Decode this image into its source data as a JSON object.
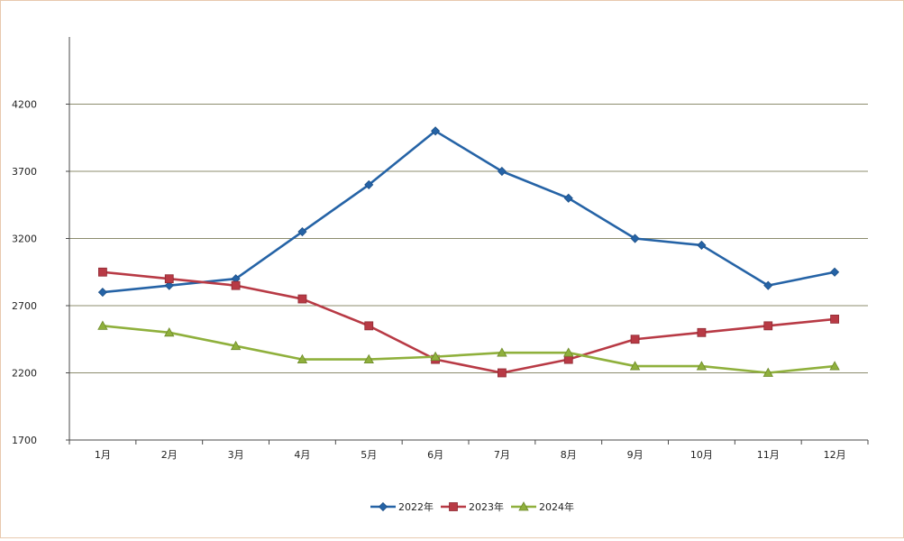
{
  "chart_data": {
    "type": "line",
    "title": "",
    "xlabel": "",
    "ylabel": "",
    "categories": [
      "1月",
      "2月",
      "3月",
      "4月",
      "5月",
      "6月",
      "7月",
      "8月",
      "9月",
      "10月",
      "11月",
      "12月"
    ],
    "ylim": [
      1700,
      4700
    ],
    "yticks": [
      1700,
      2200,
      2700,
      3200,
      3700,
      4200
    ],
    "grid": "horizontal",
    "legend_position": "bottom",
    "series": [
      {
        "name": "2022年",
        "color": "#2563a6",
        "marker": "diamond",
        "values": [
          2800,
          2850,
          2900,
          3250,
          3600,
          4000,
          3700,
          3500,
          3200,
          3150,
          2850,
          2950
        ]
      },
      {
        "name": "2023年",
        "color": "#b83a45",
        "marker": "square",
        "values": [
          2950,
          2900,
          2850,
          2750,
          2550,
          2300,
          2200,
          2300,
          2450,
          2500,
          2550,
          2600
        ]
      },
      {
        "name": "2024年",
        "color": "#8fb03c",
        "marker": "triangle",
        "values": [
          2550,
          2500,
          2400,
          2300,
          2300,
          2320,
          2350,
          2350,
          2250,
          2250,
          2200,
          2250
        ]
      }
    ]
  }
}
